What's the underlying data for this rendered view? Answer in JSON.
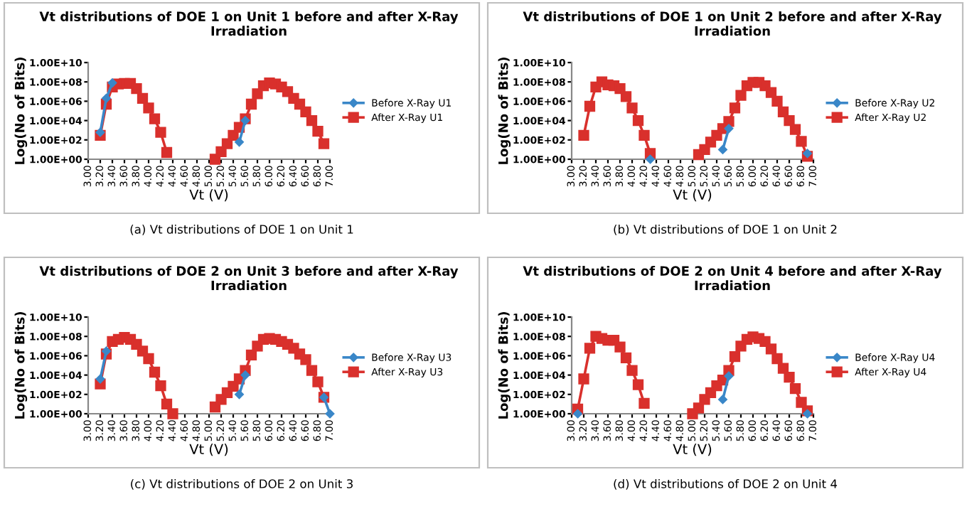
{
  "chart_data": [
    {
      "type": "line",
      "title": "Vt distributions of DOE 1 on Unit 1 before and after X-Ray Irradiation",
      "xlabel": "Vt (V)",
      "ylabel": "Log(No of Bits)",
      "annotations": [
        "(a) Vt distributions of DOE 1 on Unit 1"
      ],
      "log": "y",
      "legend": "right",
      "grid": false,
      "line_style": "solid",
      "x": [
        3.2,
        3.3,
        3.4,
        3.5,
        3.6,
        3.7,
        3.8,
        3.9,
        4.0,
        4.1,
        4.2,
        4.3,
        4.4,
        4.5,
        4.6,
        4.7,
        4.8,
        4.9,
        5.0,
        5.1,
        5.2,
        5.3,
        5.4,
        5.5,
        5.6,
        5.7,
        5.8,
        5.9,
        6.0,
        6.1,
        6.2,
        6.3,
        6.4,
        6.5,
        6.6,
        6.7,
        6.8,
        6.9
      ],
      "xlim": [
        3.0,
        7.0
      ],
      "xticks": [
        {
          "value": 3.0,
          "label": "3.00"
        },
        {
          "value": 3.2,
          "label": "3.20"
        },
        {
          "value": 3.4,
          "label": "3.40"
        },
        {
          "value": 3.6,
          "label": "3.60"
        },
        {
          "value": 3.8,
          "label": "3.80"
        },
        {
          "value": 4.0,
          "label": "4.00"
        },
        {
          "value": 4.2,
          "label": "4.20"
        },
        {
          "value": 4.4,
          "label": "4.40"
        },
        {
          "value": 4.6,
          "label": "4.60"
        },
        {
          "value": 4.8,
          "label": "4.80"
        },
        {
          "value": 5.0,
          "label": "5.00"
        },
        {
          "value": 5.2,
          "label": "5.20"
        },
        {
          "value": 5.4,
          "label": "5.40"
        },
        {
          "value": 5.6,
          "label": "5.60"
        },
        {
          "value": 5.8,
          "label": "5.80"
        },
        {
          "value": 6.0,
          "label": "6.00"
        },
        {
          "value": 6.2,
          "label": "6.20"
        },
        {
          "value": 6.4,
          "label": "6.40"
        },
        {
          "value": 6.6,
          "label": "6.60"
        },
        {
          "value": 6.8,
          "label": "6.80"
        },
        {
          "value": 7.0,
          "label": "7.00"
        }
      ],
      "ylim": [
        1,
        10000000000.0
      ],
      "yticks": [
        {
          "value": 1,
          "label": "1.00E+00"
        },
        {
          "value": 100,
          "label": "1.00E+02"
        },
        {
          "value": 10000,
          "label": "1.00E+04"
        },
        {
          "value": 1000000.0,
          "label": "1.00E+06"
        },
        {
          "value": 100000000.0,
          "label": "1.00E+08"
        },
        {
          "value": 10000000000.0,
          "label": "1.00E+10"
        }
      ],
      "series": [
        {
          "name": "Before X-Ray U1",
          "color": "#3a87c8",
          "marker": "diamond",
          "values": [
            600,
            2000000.0,
            80000000.0,
            null,
            null,
            null,
            null,
            null,
            null,
            null,
            null,
            null,
            null,
            null,
            null,
            null,
            null,
            null,
            null,
            null,
            null,
            null,
            null,
            60,
            10000,
            null,
            null,
            null,
            null,
            null,
            null,
            null,
            null,
            null,
            null,
            null,
            null,
            null
          ]
        },
        {
          "name": "After X-Ray U1",
          "color": "#d9302c",
          "marker": "square",
          "values": [
            300,
            500000.0,
            30000000.0,
            60000000.0,
            70000000.0,
            70000000.0,
            20000000.0,
            2000000.0,
            200000.0,
            15000,
            600,
            5,
            null,
            null,
            null,
            null,
            null,
            null,
            null,
            1,
            6,
            40,
            300,
            2000,
            15000,
            500000.0,
            6000000.0,
            40000000.0,
            80000000.0,
            60000000.0,
            30000000.0,
            10000000.0,
            2000000.0,
            500000.0,
            80000.0,
            10000,
            800,
            40
          ]
        }
      ]
    },
    {
      "type": "line",
      "title": "Vt distributions of DOE 1 on Unit 2 before and after X-Ray Irradiation",
      "xlabel": "Vt (V)",
      "ylabel": "Log(No of Bits)",
      "annotations": [
        "(b) Vt distributions of DOE 1 on Unit 2"
      ],
      "log": "y",
      "legend": "right",
      "grid": false,
      "line_style": "solid",
      "x": [
        3.2,
        3.3,
        3.4,
        3.5,
        3.6,
        3.7,
        3.8,
        3.9,
        4.0,
        4.1,
        4.2,
        4.3,
        4.4,
        4.5,
        4.6,
        4.7,
        4.8,
        4.9,
        5.0,
        5.1,
        5.2,
        5.3,
        5.4,
        5.5,
        5.6,
        5.7,
        5.8,
        5.9,
        6.0,
        6.1,
        6.2,
        6.3,
        6.4,
        6.5,
        6.6,
        6.7,
        6.8,
        6.9
      ],
      "xlim": [
        3.0,
        7.0
      ],
      "xticks": [
        {
          "value": 3.0,
          "label": "3.00"
        },
        {
          "value": 3.2,
          "label": "3.20"
        },
        {
          "value": 3.4,
          "label": "3.40"
        },
        {
          "value": 3.6,
          "label": "3.60"
        },
        {
          "value": 3.8,
          "label": "3.80"
        },
        {
          "value": 4.0,
          "label": "4.00"
        },
        {
          "value": 4.2,
          "label": "4.20"
        },
        {
          "value": 4.4,
          "label": "4.40"
        },
        {
          "value": 4.6,
          "label": "4.60"
        },
        {
          "value": 4.8,
          "label": "4.80"
        },
        {
          "value": 5.0,
          "label": "5.00"
        },
        {
          "value": 5.2,
          "label": "5.20"
        },
        {
          "value": 5.4,
          "label": "5.40"
        },
        {
          "value": 5.6,
          "label": "5.60"
        },
        {
          "value": 5.8,
          "label": "5.80"
        },
        {
          "value": 6.0,
          "label": "6.00"
        },
        {
          "value": 6.2,
          "label": "6.20"
        },
        {
          "value": 6.4,
          "label": "6.40"
        },
        {
          "value": 6.6,
          "label": "6.60"
        },
        {
          "value": 6.8,
          "label": "6.80"
        },
        {
          "value": 7.0,
          "label": "7.00"
        }
      ],
      "ylim": [
        1,
        10000000000.0
      ],
      "yticks": [
        {
          "value": 1,
          "label": "1.00E+00"
        },
        {
          "value": 100,
          "label": "1.00E+02"
        },
        {
          "value": 10000,
          "label": "1.00E+04"
        },
        {
          "value": 1000000.0,
          "label": "1.00E+06"
        },
        {
          "value": 100000000.0,
          "label": "1.00E+08"
        },
        {
          "value": 10000000000.0,
          "label": "1.00E+10"
        }
      ],
      "series": [
        {
          "name": "Before X-Ray U2",
          "color": "#3a87c8",
          "marker": "diamond",
          "values": [
            null,
            null,
            null,
            null,
            null,
            null,
            null,
            null,
            null,
            null,
            null,
            1,
            null,
            null,
            null,
            null,
            null,
            null,
            null,
            null,
            null,
            null,
            null,
            10,
            1500,
            null,
            null,
            null,
            null,
            null,
            null,
            null,
            null,
            null,
            null,
            null,
            null,
            4
          ]
        },
        {
          "name": "After X-Ray U2",
          "color": "#d9302c",
          "marker": "square",
          "values": [
            300,
            300000.0,
            30000000.0,
            100000000.0,
            50000000.0,
            40000000.0,
            20000000.0,
            3000000.0,
            200000.0,
            10000,
            300,
            4,
            null,
            null,
            null,
            null,
            null,
            null,
            null,
            3,
            10,
            60,
            300,
            1500,
            8000,
            200000.0,
            4000000.0,
            40000000.0,
            90000000.0,
            90000000.0,
            40000000.0,
            8000000.0,
            1000000.0,
            80000.0,
            10000,
            1200,
            70,
            2
          ]
        }
      ]
    },
    {
      "type": "line",
      "title": "Vt distributions of DOE 2 on Unit 3 before and after X-Ray Irradiation",
      "xlabel": "Vt (V)",
      "ylabel": "Log(No of Bits)",
      "annotations": [
        "(c) Vt distributions of DOE 2 on Unit 3"
      ],
      "log": "y",
      "legend": "right",
      "grid": false,
      "line_style": "solid",
      "x": [
        3.2,
        3.3,
        3.4,
        3.5,
        3.6,
        3.7,
        3.8,
        3.9,
        4.0,
        4.1,
        4.2,
        4.3,
        4.4,
        4.5,
        4.6,
        4.7,
        4.8,
        4.9,
        5.0,
        5.1,
        5.2,
        5.3,
        5.4,
        5.5,
        5.6,
        5.7,
        5.8,
        5.9,
        6.0,
        6.1,
        6.2,
        6.3,
        6.4,
        6.5,
        6.6,
        6.7,
        6.8,
        6.9,
        7.0
      ],
      "xlim": [
        3.0,
        7.0
      ],
      "xticks": [
        {
          "value": 3.0,
          "label": "3.00"
        },
        {
          "value": 3.2,
          "label": "3.20"
        },
        {
          "value": 3.4,
          "label": "3.40"
        },
        {
          "value": 3.6,
          "label": "3.60"
        },
        {
          "value": 3.8,
          "label": "3.80"
        },
        {
          "value": 4.0,
          "label": "4.00"
        },
        {
          "value": 4.2,
          "label": "4.20"
        },
        {
          "value": 4.4,
          "label": "4.40"
        },
        {
          "value": 4.6,
          "label": "4.60"
        },
        {
          "value": 4.8,
          "label": "4.80"
        },
        {
          "value": 5.0,
          "label": "5.00"
        },
        {
          "value": 5.2,
          "label": "5.20"
        },
        {
          "value": 5.4,
          "label": "5.40"
        },
        {
          "value": 5.6,
          "label": "5.60"
        },
        {
          "value": 5.8,
          "label": "5.80"
        },
        {
          "value": 6.0,
          "label": "6.00"
        },
        {
          "value": 6.2,
          "label": "6.20"
        },
        {
          "value": 6.4,
          "label": "6.40"
        },
        {
          "value": 6.6,
          "label": "6.60"
        },
        {
          "value": 6.8,
          "label": "6.80"
        },
        {
          "value": 7.0,
          "label": "7.00"
        }
      ],
      "ylim": [
        1,
        10000000000.0
      ],
      "yticks": [
        {
          "value": 1,
          "label": "1.00E+00"
        },
        {
          "value": 100,
          "label": "1.00E+02"
        },
        {
          "value": 10000,
          "label": "1.00E+04"
        },
        {
          "value": 1000000.0,
          "label": "1.00E+06"
        },
        {
          "value": 100000000.0,
          "label": "1.00E+08"
        },
        {
          "value": 10000000000.0,
          "label": "1.00E+10"
        }
      ],
      "series": [
        {
          "name": "Before X-Ray U3",
          "color": "#3a87c8",
          "marker": "diamond",
          "values": [
            4000,
            3000000.0,
            null,
            null,
            null,
            null,
            null,
            null,
            null,
            null,
            null,
            null,
            null,
            null,
            null,
            null,
            null,
            null,
            null,
            null,
            null,
            null,
            null,
            100,
            10000,
            null,
            null,
            null,
            null,
            null,
            null,
            null,
            null,
            null,
            null,
            null,
            null,
            50,
            1
          ]
        },
        {
          "name": "After X-Ray U3",
          "color": "#d9302c",
          "marker": "square",
          "values": [
            1200,
            1500000.0,
            30000000.0,
            50000000.0,
            80000000.0,
            50000000.0,
            15000000.0,
            3000000.0,
            500000.0,
            20000,
            800,
            10,
            1,
            null,
            null,
            null,
            null,
            null,
            null,
            5,
            30,
            150,
            700,
            4000,
            30000,
            1200000.0,
            10000000.0,
            50000000.0,
            60000000.0,
            50000000.0,
            30000000.0,
            15000000.0,
            6000000.0,
            1500000.0,
            400000.0,
            30000,
            2000,
            50,
            null
          ]
        }
      ]
    },
    {
      "type": "line",
      "title": "Vt distributions of DOE 2 on Unit 4 before and after X-Ray Irradiation",
      "xlabel": "Vt (V)",
      "ylabel": "Log(No of Bits)",
      "annotations": [
        "(d) Vt distributions of DOE 2 on Unit 4"
      ],
      "log": "y",
      "legend": "right",
      "grid": false,
      "line_style": "solid",
      "x": [
        3.1,
        3.2,
        3.3,
        3.4,
        3.5,
        3.6,
        3.7,
        3.8,
        3.9,
        4.0,
        4.1,
        4.2,
        4.3,
        4.4,
        4.5,
        4.6,
        4.7,
        4.8,
        4.9,
        5.0,
        5.1,
        5.2,
        5.3,
        5.4,
        5.5,
        5.6,
        5.7,
        5.8,
        5.9,
        6.0,
        6.1,
        6.2,
        6.3,
        6.4,
        6.5,
        6.6,
        6.7,
        6.8,
        6.9
      ],
      "xlim": [
        3.0,
        7.0
      ],
      "xticks": [
        {
          "value": 3.0,
          "label": "3.00"
        },
        {
          "value": 3.2,
          "label": "3.20"
        },
        {
          "value": 3.4,
          "label": "3.40"
        },
        {
          "value": 3.6,
          "label": "3.60"
        },
        {
          "value": 3.8,
          "label": "3.80"
        },
        {
          "value": 4.0,
          "label": "4.00"
        },
        {
          "value": 4.2,
          "label": "4.20"
        },
        {
          "value": 4.4,
          "label": "4.40"
        },
        {
          "value": 4.6,
          "label": "4.60"
        },
        {
          "value": 4.8,
          "label": "4.80"
        },
        {
          "value": 5.0,
          "label": "5.00"
        },
        {
          "value": 5.2,
          "label": "5.20"
        },
        {
          "value": 5.4,
          "label": "5.40"
        },
        {
          "value": 5.6,
          "label": "5.60"
        },
        {
          "value": 5.8,
          "label": "5.80"
        },
        {
          "value": 6.0,
          "label": "6.00"
        },
        {
          "value": 6.2,
          "label": "6.20"
        },
        {
          "value": 6.4,
          "label": "6.40"
        },
        {
          "value": 6.6,
          "label": "6.60"
        },
        {
          "value": 6.8,
          "label": "6.80"
        },
        {
          "value": 7.0,
          "label": "7.00"
        }
      ],
      "ylim": [
        1,
        10000000000.0
      ],
      "yticks": [
        {
          "value": 1,
          "label": "1.00E+00"
        },
        {
          "value": 100,
          "label": "1.00E+02"
        },
        {
          "value": 10000,
          "label": "1.00E+04"
        },
        {
          "value": 1000000.0,
          "label": "1.00E+06"
        },
        {
          "value": 100000000.0,
          "label": "1.00E+08"
        },
        {
          "value": 10000000000.0,
          "label": "1.00E+10"
        }
      ],
      "series": [
        {
          "name": "Before X-Ray U4",
          "color": "#3a87c8",
          "marker": "diamond",
          "values": [
            1,
            null,
            null,
            null,
            null,
            null,
            null,
            null,
            null,
            null,
            null,
            null,
            null,
            null,
            null,
            null,
            null,
            null,
            null,
            null,
            null,
            null,
            null,
            null,
            30,
            8000,
            null,
            null,
            null,
            null,
            null,
            null,
            null,
            null,
            null,
            null,
            null,
            null,
            1
          ]
        },
        {
          "name": "After X-Ray U4",
          "color": "#d9302c",
          "marker": "square",
          "values": [
            3,
            4000,
            6000000.0,
            100000000.0,
            60000000.0,
            40000000.0,
            40000000.0,
            8000000.0,
            600000.0,
            30000,
            1000,
            12,
            null,
            null,
            null,
            null,
            null,
            null,
            null,
            1,
            4,
            30,
            150,
            800,
            3000,
            30000,
            800000.0,
            10000000.0,
            50000000.0,
            90000000.0,
            60000000.0,
            30000000.0,
            5000000.0,
            500000.0,
            50000.0,
            6000,
            400,
            15,
            2
          ]
        }
      ]
    }
  ]
}
